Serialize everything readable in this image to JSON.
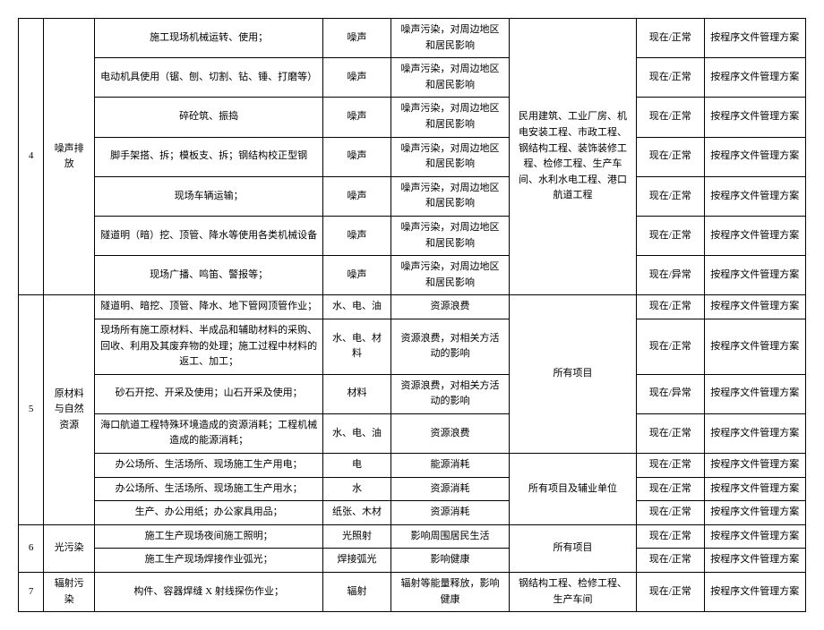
{
  "font_family": "SimSun",
  "font_size_pt": 11,
  "border_color": "#000000",
  "bg_color": "#ffffff",
  "text_color": "#000000",
  "col_widths_pct": [
    3,
    6,
    27,
    8,
    14,
    15,
    8,
    12
  ],
  "groups": [
    {
      "num": "4",
      "cat": "噪声排放",
      "scope": "民用建筑、工业厂房、机电安装工程、市政工程、钢结构工程、装饰装修工程、检修工程、生产车间、水利水电工程、港口航道工程",
      "rows": [
        {
          "activity": "施工现场机械运转、使用；",
          "factor": "噪声",
          "impact": "噪声污染，对周边地区和居民影响",
          "status": "现在/正常",
          "action": "按程序文件管理方案"
        },
        {
          "activity": "电动机具使用（锯、刨、切割、钻、锤、打磨等）",
          "factor": "噪声",
          "impact": "噪声污染，对周边地区和居民影响",
          "status": "现在/正常",
          "action": "按程序文件管理方案"
        },
        {
          "activity": "碎砼筑、振捣",
          "factor": "噪声",
          "impact": "噪声污染，对周边地区和居民影响",
          "status": "现在/正常",
          "action": "按程序文件管理方案"
        },
        {
          "activity": "脚手架搭、拆；模板支、拆；钢结构校正型钢",
          "factor": "噪声",
          "impact": "噪声污染，对周边地区和居民影响",
          "status": "现在/正常",
          "action": "按程序文件管理方案"
        },
        {
          "activity": "现场车辆运输；",
          "factor": "噪声",
          "impact": "噪声污染，对周边地区和居民影响",
          "status": "现在/正常",
          "action": "按程序文件管理方案"
        },
        {
          "activity": "隧道明（暗）挖、顶管、降水等使用各类机械设备",
          "factor": "噪声",
          "impact": "噪声污染，对周边地区和居民影响",
          "status": "现在/正常",
          "action": "按程序文件管理方案"
        },
        {
          "activity": "现场广播、鸣笛、警报等；",
          "factor": "噪声",
          "impact": "噪声污染，对周边地区和居民影响",
          "status": "现在/异常",
          "action": "按程序文件管理方案"
        }
      ]
    },
    {
      "num": "5",
      "cat": "原材料与自然资源",
      "scope_groups": [
        {
          "scope": "所有项目",
          "count": 4
        },
        {
          "scope": "所有项目及辅业单位",
          "count": 3
        }
      ],
      "rows": [
        {
          "activity": "隧道明、暗挖、顶管、降水、地下管网顶管作业；",
          "factor": "水、电、油",
          "impact": "资源浪费",
          "status": "现在/正常",
          "action": "按程序文件管理方案"
        },
        {
          "activity": "现场所有施工原材料、半成品和辅助材料的采购、回收、利用及其废弃物的处理；施工过程中材料的返工、加工；",
          "factor": "水、电、材料",
          "impact": "资源浪费，对相关方活动的影响",
          "status": "现在/正常",
          "action": "按程序文件管理方案"
        },
        {
          "activity": "砂石开挖、开采及使用；山石开采及使用；",
          "factor": "材料",
          "impact": "资源浪费，对相关方活动的影响",
          "status": "现在/异常",
          "action": "按程序文件管理方案"
        },
        {
          "activity": "海口航道工程特殊环境造成的资源消耗；工程机械造成的能源消耗；",
          "factor": "水、电、油",
          "impact": "资源浪费",
          "status": "现在/正常",
          "action": "按程序文件管理方案"
        },
        {
          "activity": "办公场所、生活场所、现场施工生产用电；",
          "factor": "电",
          "impact": "能源消耗",
          "status": "现在/正常",
          "action": "按程序文件管理方案"
        },
        {
          "activity": "办公场所、生活场所、现场施工生产用水；",
          "factor": "水",
          "impact": "资源消耗",
          "status": "现在/正常",
          "action": "按程序文件管理方案"
        },
        {
          "activity": "生产、办公用纸；办公家具用品；",
          "factor": "纸张、木材",
          "impact": "资源消耗",
          "status": "现在/正常",
          "action": "按程序文件管理方案"
        }
      ]
    },
    {
      "num": "6",
      "cat": "光污染",
      "scope": "所有项目",
      "rows": [
        {
          "activity": "施工生产现场夜间施工照明；",
          "factor": "光照射",
          "impact": "影响周围居民生活",
          "status": "现在/正常",
          "action": "按程序文件管理方案"
        },
        {
          "activity": "施工生产现场焊接作业弧光；",
          "factor": "焊接弧光",
          "impact": "影响健康",
          "status": "现在/正常",
          "action": "按程序文件管理方案"
        }
      ]
    },
    {
      "num": "7",
      "cat": "辐射污染",
      "scope": "钢结构工程、检修工程、生产车间",
      "rows": [
        {
          "activity": "构件、容器焊缝 X 射线探伤作业；",
          "factor": "辐射",
          "impact": "辐射等能量释放，影响健康",
          "status": "现在/正常",
          "action": "按程序文件管理方案"
        }
      ]
    }
  ]
}
